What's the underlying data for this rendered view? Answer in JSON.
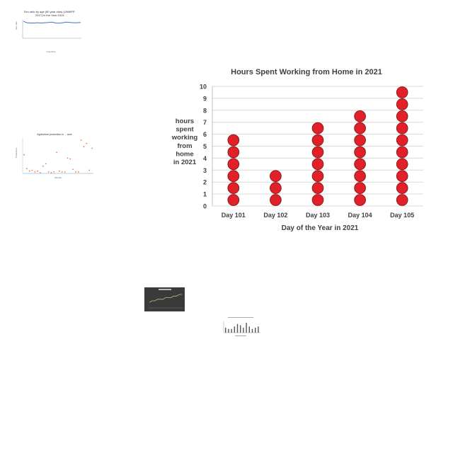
{
  "thumbnails": {
    "sex_ratio": {
      "title_line1": "Sex ratio by age (80 year olds) (UNWPP,",
      "title_line2": "2017) in the Year 2015",
      "xlabel": "Countries",
      "ylabel": "Sex ratio",
      "chart_data": {
        "type": "line",
        "values": [
          64,
          59,
          58,
          58,
          59,
          58,
          59,
          60,
          61,
          58,
          57,
          59,
          61,
          60,
          59,
          59,
          60
        ],
        "ylim": [
          0,
          70
        ]
      }
    },
    "agriculture": {
      "title": "Agriculture production in ... acre",
      "xlabel": "Months",
      "ylabel": "Production",
      "chart_data": {
        "type": "scatter",
        "values": [
          22,
          5,
          2,
          3,
          1,
          2,
          0,
          8,
          11,
          1,
          0,
          1,
          25,
          2,
          1,
          1,
          18,
          17,
          4,
          1,
          1,
          40,
          32,
          36,
          3,
          30
        ]
      }
    },
    "dark_chart": {
      "title": "",
      "chart_data": {
        "type": "line",
        "values": [
          3,
          4,
          4,
          5,
          5,
          5,
          6,
          6,
          6,
          7,
          7,
          8,
          8
        ]
      }
    },
    "bar_thumb": {
      "chart_data": {
        "type": "bar",
        "values": [
          4,
          3,
          3,
          5,
          7,
          6,
          4,
          8,
          5,
          3,
          4,
          5
        ]
      }
    }
  },
  "chart_data": {
    "type": "dot",
    "title": "Hours Spent Working from Home in 2021",
    "xlabel": "Day of the Year in 2021",
    "ylabel_lines": [
      "hours",
      "spent",
      "working",
      "from",
      "home",
      "in 2021"
    ],
    "categories": [
      "Day 101",
      "Day 102",
      "Day 103",
      "Day 104",
      "Day 105"
    ],
    "values": [
      6,
      3,
      7,
      8,
      10
    ],
    "ylim": [
      0,
      10
    ],
    "yticks": [
      "0",
      "1",
      "2",
      "3",
      "4",
      "5",
      "6",
      "7",
      "8",
      "9",
      "10"
    ],
    "grid": true,
    "colors": {
      "dot_fill": "#e2202a",
      "dot_stroke": "#8b1c1c",
      "grid": "#d9d9d9",
      "text": "#404040"
    }
  }
}
